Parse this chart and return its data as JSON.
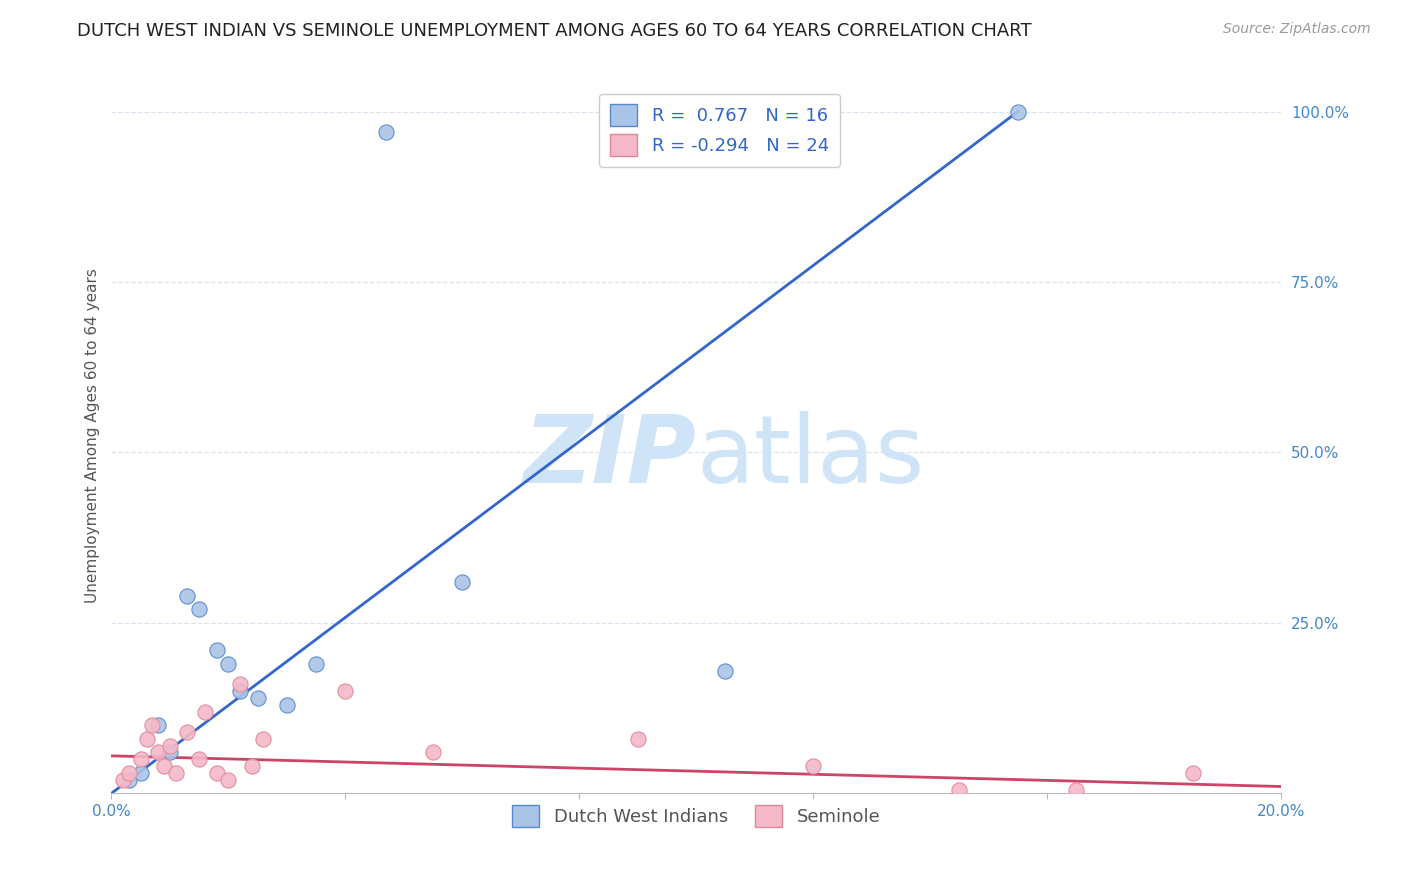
{
  "title": "DUTCH WEST INDIAN VS SEMINOLE UNEMPLOYMENT AMONG AGES 60 TO 64 YEARS CORRELATION CHART",
  "source": "Source: ZipAtlas.com",
  "ylabel": "Unemployment Among Ages 60 to 64 years",
  "xlim": [
    0.0,
    0.2
  ],
  "ylim": [
    0.0,
    1.05
  ],
  "xticks": [
    0.0,
    0.04,
    0.08,
    0.12,
    0.16,
    0.2
  ],
  "xticklabels": [
    "0.0%",
    "",
    "",
    "",
    "",
    "20.0%"
  ],
  "yticks": [
    0.25,
    0.5,
    0.75,
    1.0
  ],
  "yticklabels": [
    "25.0%",
    "50.0%",
    "75.0%",
    "100.0%"
  ],
  "blue_R": 0.767,
  "blue_N": 16,
  "pink_R": -0.294,
  "pink_N": 24,
  "blue_scatter_x": [
    0.003,
    0.005,
    0.008,
    0.01,
    0.013,
    0.015,
    0.018,
    0.02,
    0.022,
    0.025,
    0.03,
    0.035,
    0.047,
    0.06,
    0.105,
    0.155
  ],
  "blue_scatter_y": [
    0.02,
    0.03,
    0.1,
    0.06,
    0.29,
    0.27,
    0.21,
    0.19,
    0.15,
    0.14,
    0.13,
    0.19,
    0.97,
    0.31,
    0.18,
    1.0
  ],
  "blue_line_x": [
    0.0,
    0.155
  ],
  "blue_line_y": [
    0.0,
    1.0
  ],
  "pink_scatter_x": [
    0.002,
    0.003,
    0.005,
    0.006,
    0.007,
    0.008,
    0.009,
    0.01,
    0.011,
    0.013,
    0.015,
    0.016,
    0.018,
    0.02,
    0.022,
    0.024,
    0.026,
    0.04,
    0.055,
    0.09,
    0.12,
    0.145,
    0.165,
    0.185
  ],
  "pink_scatter_y": [
    0.02,
    0.03,
    0.05,
    0.08,
    0.1,
    0.06,
    0.04,
    0.07,
    0.03,
    0.09,
    0.05,
    0.12,
    0.03,
    0.02,
    0.16,
    0.04,
    0.08,
    0.15,
    0.06,
    0.08,
    0.04,
    0.005,
    0.005,
    0.03
  ],
  "pink_line_x": [
    0.0,
    0.2
  ],
  "pink_line_y": [
    0.055,
    0.01
  ],
  "blue_color": "#aac4e8",
  "blue_edge_color": "#5588cc",
  "blue_line_color": "#3366cc",
  "pink_color": "#f5b8c8",
  "pink_edge_color": "#e08898",
  "pink_line_color": "#cc4466",
  "watermark_color": "#d0e4f8",
  "background_color": "#ffffff",
  "grid_color": "#d8e4f0",
  "title_fontsize": 13,
  "axis_label_fontsize": 11,
  "tick_fontsize": 11,
  "legend_fontsize": 13,
  "source_fontsize": 10,
  "marker_size": 120
}
